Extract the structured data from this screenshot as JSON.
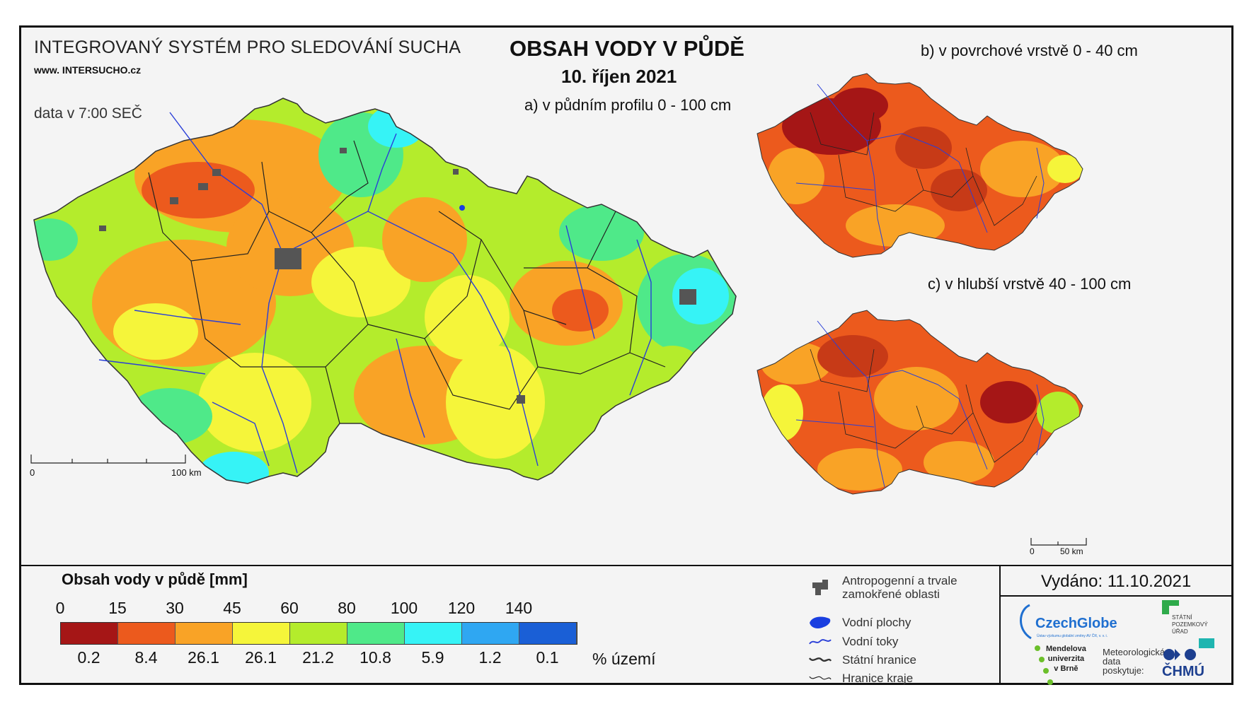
{
  "header": {
    "system_title": "INTEGROVANÝ SYSTÉM PRO SLEDOVÁNÍ SUCHA",
    "url": "www. INTERSUCHO.cz",
    "data_time": "data v 7:00 SEČ",
    "main_title": "OBSAH VODY V PŮDĚ",
    "date": "10. říjen 2021"
  },
  "maps": {
    "a_title": "a) v půdním profilu 0 - 100 cm",
    "b_title": "b) v povrchové vrstvě 0 - 40 cm",
    "c_title": "c) v hlubší vrstvě 40 - 100 cm",
    "scale_main": {
      "start": "0",
      "end": "100 km"
    },
    "scale_small": {
      "start": "0",
      "end": "50 km"
    }
  },
  "legend": {
    "title": "Obsah vody v půdě  [mm]",
    "ticks": [
      "0",
      "15",
      "30",
      "45",
      "60",
      "80",
      "100",
      "120",
      "140"
    ],
    "colors": [
      "#a51616",
      "#ec5a1d",
      "#f9a326",
      "#f5f53a",
      "#b4ec2c",
      "#4fe989",
      "#36f3f6",
      "#2fa7f2",
      "#1a5fd6"
    ],
    "percentages": [
      "0.2",
      "8.4",
      "26.1",
      "26.1",
      "21.2",
      "10.8",
      "5.9",
      "1.2",
      "0.1"
    ],
    "pct_unit": "% území"
  },
  "key": {
    "items": [
      {
        "icon": "urban-area-icon",
        "label_line1": "Antropogenní a trvale",
        "label_line2": "zamokřené oblasti"
      },
      {
        "icon": "water-body-icon",
        "label_line1": "Vodní plochy"
      },
      {
        "icon": "river-icon",
        "label_line1": "Vodní toky"
      },
      {
        "icon": "state-border-icon",
        "label_line1": "Státní hranice"
      },
      {
        "icon": "region-border-icon",
        "label_line1": "Hranice kraje"
      }
    ]
  },
  "footer": {
    "issued": "Vydáno: 11.10.2021",
    "czechglobe": "CzechGlobe",
    "czechglobe_sub": "Ústav výzkumu globální změny AV ČR, v. v. i.",
    "spu_line1": "STÁTNÍ",
    "spu_line2": "POZEMKOVÝ",
    "spu_line3": "ÚŘAD",
    "mendel_line1": "Mendelova",
    "mendel_line2": "univerzita",
    "mendel_line3": "v Brně",
    "meteo_line1": "Meteorologická",
    "meteo_line2": "data",
    "meteo_line3": "poskytuje:",
    "chmu": "ČHMÚ"
  }
}
